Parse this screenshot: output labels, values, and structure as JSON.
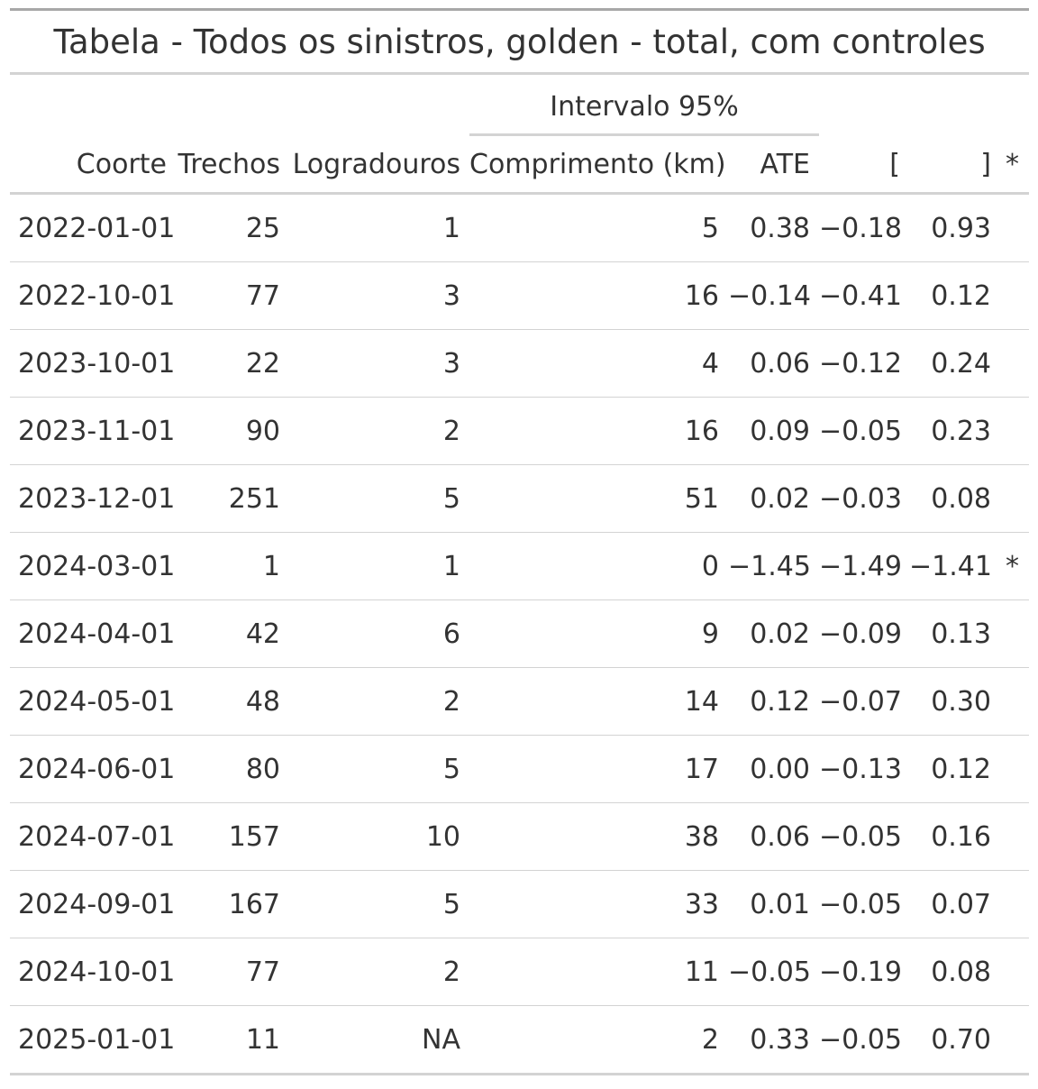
{
  "table": {
    "title": "Tabela - Todos os sinistros, golden - total, com controles",
    "spanner": "Intervalo 95%",
    "columns": {
      "coorte": "Coorte",
      "trechos": "Trechos",
      "logradouros": "Logradouros",
      "comprimento": "Comprimento (km)",
      "ate": "ATE",
      "ci_low": "[",
      "ci_high": "]",
      "sig": "*"
    },
    "rows": [
      {
        "coorte": "2022-01-01",
        "trechos": "25",
        "logradouros": "1",
        "comprimento": "5",
        "ate": "0.38",
        "ci_low": "−0.18",
        "ci_high": "0.93",
        "sig": ""
      },
      {
        "coorte": "2022-10-01",
        "trechos": "77",
        "logradouros": "3",
        "comprimento": "16",
        "ate": "−0.14",
        "ci_low": "−0.41",
        "ci_high": "0.12",
        "sig": ""
      },
      {
        "coorte": "2023-10-01",
        "trechos": "22",
        "logradouros": "3",
        "comprimento": "4",
        "ate": "0.06",
        "ci_low": "−0.12",
        "ci_high": "0.24",
        "sig": ""
      },
      {
        "coorte": "2023-11-01",
        "trechos": "90",
        "logradouros": "2",
        "comprimento": "16",
        "ate": "0.09",
        "ci_low": "−0.05",
        "ci_high": "0.23",
        "sig": ""
      },
      {
        "coorte": "2023-12-01",
        "trechos": "251",
        "logradouros": "5",
        "comprimento": "51",
        "ate": "0.02",
        "ci_low": "−0.03",
        "ci_high": "0.08",
        "sig": ""
      },
      {
        "coorte": "2024-03-01",
        "trechos": "1",
        "logradouros": "1",
        "comprimento": "0",
        "ate": "−1.45",
        "ci_low": "−1.49",
        "ci_high": "−1.41",
        "sig": "*"
      },
      {
        "coorte": "2024-04-01",
        "trechos": "42",
        "logradouros": "6",
        "comprimento": "9",
        "ate": "0.02",
        "ci_low": "−0.09",
        "ci_high": "0.13",
        "sig": ""
      },
      {
        "coorte": "2024-05-01",
        "trechos": "48",
        "logradouros": "2",
        "comprimento": "14",
        "ate": "0.12",
        "ci_low": "−0.07",
        "ci_high": "0.30",
        "sig": ""
      },
      {
        "coorte": "2024-06-01",
        "trechos": "80",
        "logradouros": "5",
        "comprimento": "17",
        "ate": "0.00",
        "ci_low": "−0.13",
        "ci_high": "0.12",
        "sig": ""
      },
      {
        "coorte": "2024-07-01",
        "trechos": "157",
        "logradouros": "10",
        "comprimento": "38",
        "ate": "0.06",
        "ci_low": "−0.05",
        "ci_high": "0.16",
        "sig": ""
      },
      {
        "coorte": "2024-09-01",
        "trechos": "167",
        "logradouros": "5",
        "comprimento": "33",
        "ate": "0.01",
        "ci_low": "−0.05",
        "ci_high": "0.07",
        "sig": ""
      },
      {
        "coorte": "2024-10-01",
        "trechos": "77",
        "logradouros": "2",
        "comprimento": "11",
        "ate": "−0.05",
        "ci_low": "−0.19",
        "ci_high": "0.08",
        "sig": ""
      },
      {
        "coorte": "2025-01-01",
        "trechos": "11",
        "logradouros": "NA",
        "comprimento": "2",
        "ate": "0.33",
        "ci_low": "−0.05",
        "ci_high": "0.70",
        "sig": ""
      }
    ]
  }
}
